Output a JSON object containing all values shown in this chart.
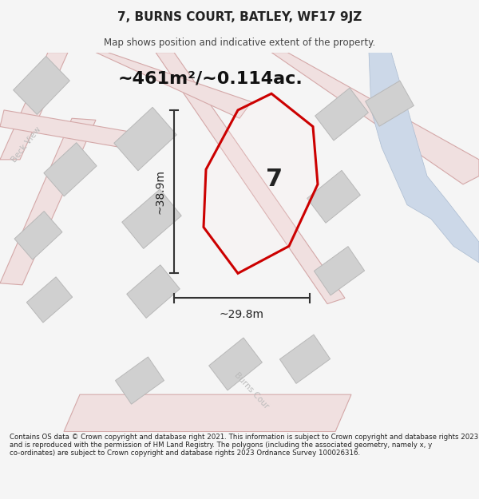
{
  "title": "7, BURNS COURT, BATLEY, WF17 9JZ",
  "subtitle": "Map shows position and indicative extent of the property.",
  "area_text": "~461m²/~0.114ac.",
  "label_7": "7",
  "dim_width": "~29.8m",
  "dim_height": "~38.9m",
  "beck_view_text": "Beck View",
  "burns_court_text": "Burns Cour",
  "footer": "Contains OS data © Crown copyright and database right 2021. This information is subject to Crown copyright and database rights 2023 and is reproduced with the permission of HM Land Registry. The polygons (including the associated geometry, namely x, y co-ordinates) are subject to Crown copyright and database rights 2023 Ordnance Survey 100026316.",
  "bg_color": "#f5f5f5",
  "map_bg": "#eeede9",
  "road_fill": "#f0e0e0",
  "road_edge": "#d4a8a8",
  "building_fill": "#d0d0d0",
  "building_edge": "#b8b8b8",
  "plot_edge": "#cc0000",
  "water_fill": "#ccd8e8",
  "water_edge": "#aabbd0",
  "dim_color": "#333333",
  "text_dark": "#111111",
  "text_road": "#bbbbbb",
  "prop_fill_rgba": [
    1.0,
    0.92,
    0.92,
    0.18
  ]
}
